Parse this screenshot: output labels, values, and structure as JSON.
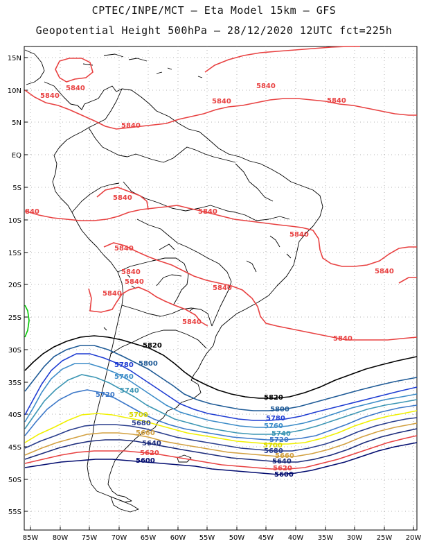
{
  "header": {
    "line1": "CPTEC/INPE/MCT –  Eta Model 15km – GFS",
    "line2": "Geopotential Height 500hPa – 28/12/2020 12UTC fct=225h"
  },
  "axes": {
    "lat_labels": [
      "15N",
      "10N",
      "5N",
      "EQ",
      "5S",
      "10S",
      "15S",
      "20S",
      "25S",
      "30S",
      "35S",
      "40S",
      "45S",
      "50S",
      "55S"
    ],
    "lon_labels": [
      "85W",
      "80W",
      "75W",
      "70W",
      "65W",
      "60W",
      "55W",
      "50W",
      "45W",
      "40W",
      "35W",
      "30W",
      "25W",
      "20W"
    ]
  },
  "contours": {
    "colors": {
      "5600": "#000a6e",
      "5620": "#e84141",
      "5640": "#1a2a7a",
      "5660": "#d2a040",
      "5680": "#283c8c",
      "5700": "#f0f000",
      "5720": "#3c78c8",
      "5740": "#3c96b4",
      "5760": "#3c8cc8",
      "5780": "#1e3cd2",
      "5800": "#1e5a96",
      "5820": "#000000",
      "5840": "#e84141",
      "5860": "#00c800"
    },
    "labels": [
      {
        "id": "l5840a",
        "text": "5840",
        "color": "#e84141"
      },
      {
        "id": "l5840b",
        "text": "5840",
        "color": "#e84141"
      },
      {
        "id": "l5840c",
        "text": "5840",
        "color": "#e84141"
      },
      {
        "id": "l5840d",
        "text": "5840",
        "color": "#e84141"
      },
      {
        "id": "l5840e",
        "text": "5840",
        "color": "#e84141"
      },
      {
        "id": "l5840f",
        "text": "5840",
        "color": "#e84141"
      },
      {
        "id": "l5840g",
        "text": "5840",
        "color": "#e84141"
      },
      {
        "id": "l5840h",
        "text": "5840",
        "color": "#e84141"
      },
      {
        "id": "l5840i",
        "text": "840",
        "color": "#e84141"
      },
      {
        "id": "l5840j",
        "text": "5840",
        "color": "#e84141"
      },
      {
        "id": "l5840k",
        "text": "5840",
        "color": "#e84141"
      },
      {
        "id": "l5840l",
        "text": "5840",
        "color": "#e84141"
      },
      {
        "id": "l5840m",
        "text": "5840",
        "color": "#e84141"
      },
      {
        "id": "l5840n",
        "text": "5840",
        "color": "#e84141"
      },
      {
        "id": "l5840o",
        "text": "5840",
        "color": "#e84141"
      },
      {
        "id": "l5840p",
        "text": "5840",
        "color": "#e84141"
      },
      {
        "id": "l5840q",
        "text": "5840",
        "color": "#e84141"
      },
      {
        "id": "l5820a",
        "text": "5820",
        "color": "#000000"
      },
      {
        "id": "l5820b",
        "text": "5820",
        "color": "#000000"
      },
      {
        "id": "l5800a",
        "text": "5800",
        "color": "#1e5a96"
      },
      {
        "id": "l5800b",
        "text": "5800",
        "color": "#1e5a96"
      },
      {
        "id": "l5780a",
        "text": "5780",
        "color": "#1e3cd2"
      },
      {
        "id": "l5780b",
        "text": "5780",
        "color": "#1e3cd2"
      },
      {
        "id": "l5760a",
        "text": "5760",
        "color": "#3c8cc8"
      },
      {
        "id": "l5760b",
        "text": "5760",
        "color": "#3c8cc8"
      },
      {
        "id": "l5740a",
        "text": "5740",
        "color": "#3c96b4"
      },
      {
        "id": "l5740b",
        "text": "5740",
        "color": "#3c96b4"
      },
      {
        "id": "l5720a",
        "text": "5720",
        "color": "#3c78c8"
      },
      {
        "id": "l5720b",
        "text": "5720",
        "color": "#3c78c8"
      },
      {
        "id": "l5700a",
        "text": "5700",
        "color": "#d8d800"
      },
      {
        "id": "l5700b",
        "text": "5700",
        "color": "#d8d800"
      },
      {
        "id": "l5680a",
        "text": "5680",
        "color": "#283c8c"
      },
      {
        "id": "l5680b",
        "text": "5680",
        "color": "#283c8c"
      },
      {
        "id": "l5660a",
        "text": "5660",
        "color": "#d2a040"
      },
      {
        "id": "l5660b",
        "text": "5660",
        "color": "#d2a040"
      },
      {
        "id": "l5640a",
        "text": "5640",
        "color": "#1a2a7a"
      },
      {
        "id": "l5640b",
        "text": "5640",
        "color": "#1a2a7a"
      },
      {
        "id": "l5620a",
        "text": "5620",
        "color": "#e84141"
      },
      {
        "id": "l5620b",
        "text": "5620",
        "color": "#e84141"
      },
      {
        "id": "l5600a",
        "text": "5600",
        "color": "#000a6e"
      },
      {
        "id": "l5600b",
        "text": "5600",
        "color": "#000a6e"
      }
    ]
  }
}
